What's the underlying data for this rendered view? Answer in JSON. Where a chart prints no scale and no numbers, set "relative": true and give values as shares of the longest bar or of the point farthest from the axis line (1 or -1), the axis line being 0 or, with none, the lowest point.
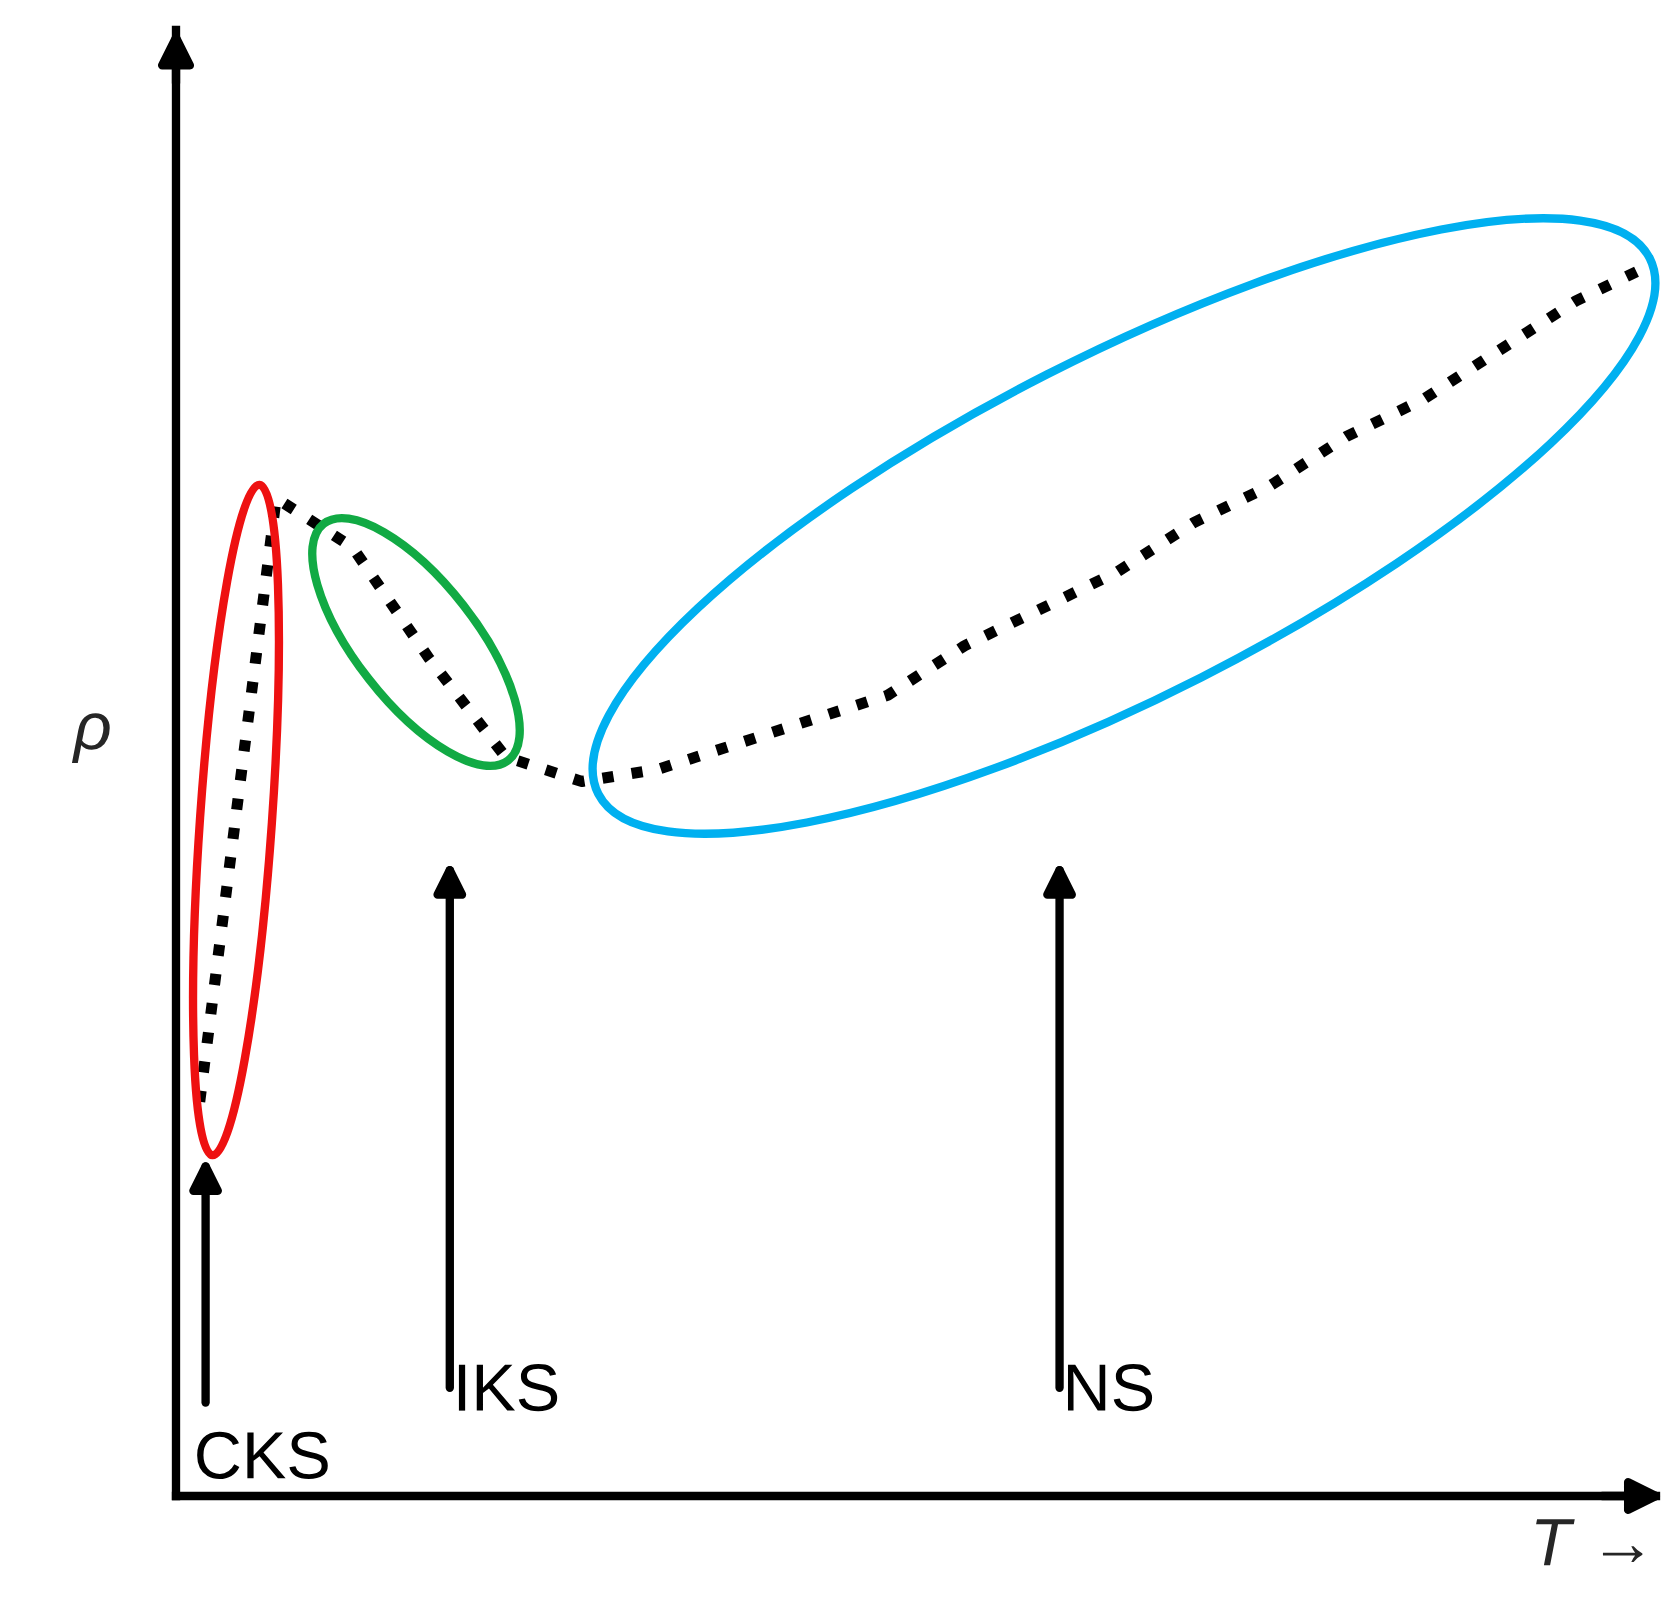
{
  "chart_data": {
    "type": "line",
    "relative": true,
    "xlabel": "T →",
    "ylabel": "ρ",
    "legend": false,
    "marker": "none",
    "line_style": "dotted",
    "categories": [
      null,
      null,
      null,
      null,
      null,
      null,
      null,
      null,
      null,
      null,
      null,
      null,
      null,
      null,
      null,
      null,
      null,
      null,
      null,
      null
    ],
    "series": [
      {
        "color": "#000000",
        "values": [
          0.32,
          0.81,
          0.77,
          0.68,
          0.6,
          0.58,
          0.59,
          0.61,
          0.63,
          0.65,
          0.69,
          0.72,
          0.75,
          0.79,
          0.82,
          0.86,
          0.89,
          0.93,
          0.97,
          1.0
        ]
      }
    ],
    "annotations": [
      "CKS",
      "IKS",
      "NS"
    ]
  }
}
